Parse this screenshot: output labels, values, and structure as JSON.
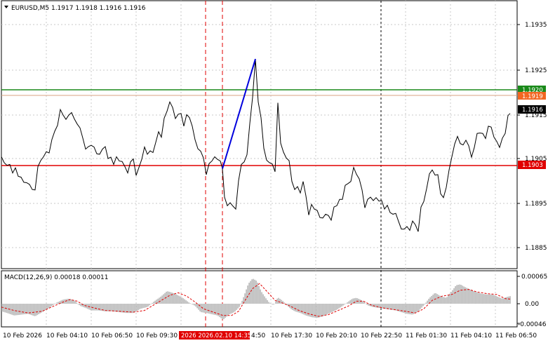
{
  "main_panel": {
    "symbol_header": "EURUSD,M5  1.1917 1.1918 1.1916 1.1916",
    "price_ticks": [
      "1.1935",
      "1.1925",
      "1.1915",
      "1.1905",
      "1.1895",
      "1.1885"
    ],
    "tags": {
      "green": {
        "text": "1.1920",
        "color": "#1a8a1a"
      },
      "orange": {
        "text": "1.1919",
        "color": "#f26722"
      },
      "current": {
        "text": "1.1916",
        "color": "#000000"
      },
      "red": {
        "text": "1.1903",
        "color": "#e00000"
      }
    }
  },
  "macd_panel": {
    "header": "MACD(12,26,9) 0.00018 0.00011",
    "ticks": [
      "0.00065",
      "0.00",
      "-0.00046"
    ],
    "histogram_color": "#c0c0c0",
    "signal_color": "#e00000"
  },
  "time_axis": {
    "labels": [
      "10 Feb 2026",
      "10 Feb 04:10",
      "10 Feb 06:50",
      "10 Feb 09:30",
      "4:50",
      "10 Feb 17:30",
      "10 Feb 20:10",
      "10 Feb 22:50",
      "11 Feb 01:30",
      "11 Feb 04:10",
      "11 Feb 06:50"
    ],
    "highlight_label": "2026 2026.02.10 14:35",
    "highlight_color": "#e00000"
  },
  "chart_data": {
    "type": "line",
    "title": "EURUSD,M5",
    "ylim": [
      1.18795,
      1.19425
    ],
    "levels": {
      "green": 1.192,
      "orange": 1.1919,
      "red": 1.1903
    },
    "trend_line": {
      "from": [
        317,
        1.1903
      ],
      "to": [
        364,
        1.19288
      ],
      "color": "#0000dd"
    },
    "price_series": [
      [
        2,
        1.19058
      ],
      [
        6,
        1.19044
      ],
      [
        10,
        1.19038
      ],
      [
        14,
        1.1904
      ],
      [
        18,
        1.1902
      ],
      [
        22,
        1.19032
      ],
      [
        26,
        1.19012
      ],
      [
        30,
        1.1901
      ],
      [
        34,
        1.18998
      ],
      [
        38,
        1.18997
      ],
      [
        42,
        1.18993
      ],
      [
        46,
        1.18981
      ],
      [
        50,
        1.1898
      ],
      [
        54,
        1.19035
      ],
      [
        58,
        1.19049
      ],
      [
        62,
        1.19058
      ],
      [
        66,
        1.1907
      ],
      [
        70,
        1.19067
      ],
      [
        74,
        1.19099
      ],
      [
        78,
        1.19118
      ],
      [
        82,
        1.19132
      ],
      [
        86,
        1.19169
      ],
      [
        90,
        1.19156
      ],
      [
        94,
        1.19146
      ],
      [
        98,
        1.19156
      ],
      [
        102,
        1.19162
      ],
      [
        106,
        1.19147
      ],
      [
        110,
        1.19135
      ],
      [
        114,
        1.19126
      ],
      [
        118,
        1.19102
      ],
      [
        122,
        1.19076
      ],
      [
        126,
        1.19082
      ],
      [
        130,
        1.19085
      ],
      [
        134,
        1.19081
      ],
      [
        138,
        1.19065
      ],
      [
        142,
        1.19064
      ],
      [
        146,
        1.19076
      ],
      [
        150,
        1.19082
      ],
      [
        154,
        1.19054
      ],
      [
        158,
        1.19057
      ],
      [
        162,
        1.1904
      ],
      [
        166,
        1.19058
      ],
      [
        170,
        1.19048
      ],
      [
        174,
        1.19047
      ],
      [
        178,
        1.19035
      ],
      [
        182,
        1.1902
      ],
      [
        186,
        1.19046
      ],
      [
        190,
        1.19053
      ],
      [
        194,
        1.19014
      ],
      [
        198,
        1.19033
      ],
      [
        202,
        1.19052
      ],
      [
        206,
        1.19081
      ],
      [
        210,
        1.19064
      ],
      [
        214,
        1.19072
      ],
      [
        218,
        1.19068
      ],
      [
        222,
        1.19092
      ],
      [
        226,
        1.19117
      ],
      [
        230,
        1.19104
      ],
      [
        234,
        1.19149
      ],
      [
        238,
        1.19165
      ],
      [
        242,
        1.19187
      ],
      [
        246,
        1.19174
      ],
      [
        250,
        1.19148
      ],
      [
        254,
        1.19158
      ],
      [
        258,
        1.1916
      ],
      [
        262,
        1.1913
      ],
      [
        266,
        1.19157
      ],
      [
        270,
        1.1915
      ],
      [
        274,
        1.1913
      ],
      [
        278,
        1.19098
      ],
      [
        282,
        1.19077
      ],
      [
        286,
        1.19071
      ],
      [
        290,
        1.19055
      ],
      [
        294,
        1.19016
      ],
      [
        298,
        1.19042
      ],
      [
        302,
        1.19048
      ],
      [
        306,
        1.19058
      ],
      [
        310,
        1.19052
      ],
      [
        314,
        1.19048
      ],
      [
        317,
        1.1903
      ],
      [
        320,
        1.18963
      ],
      [
        324,
        1.18943
      ],
      [
        328,
        1.1895
      ],
      [
        332,
        1.18942
      ],
      [
        336,
        1.18935
      ],
      [
        340,
        1.19002
      ],
      [
        344,
        1.1904
      ],
      [
        348,
        1.19046
      ],
      [
        352,
        1.19063
      ],
      [
        356,
        1.19136
      ],
      [
        360,
        1.19198
      ],
      [
        364,
        1.19288
      ],
      [
        368,
        1.19187
      ],
      [
        372,
        1.1915
      ],
      [
        376,
        1.19078
      ],
      [
        380,
        1.1905
      ],
      [
        384,
        1.19044
      ],
      [
        388,
        1.19041
      ],
      [
        392,
        1.19023
      ],
      [
        396,
        1.19185
      ],
      [
        400,
        1.1909
      ],
      [
        404,
        1.19069
      ],
      [
        408,
        1.19055
      ],
      [
        412,
        1.19049
      ],
      [
        416,
        1.19
      ],
      [
        420,
        1.18981
      ],
      [
        424,
        1.18988
      ],
      [
        428,
        1.18973
      ],
      [
        432,
        1.19
      ],
      [
        436,
        1.18966
      ],
      [
        440,
        1.18921
      ],
      [
        444,
        1.18946
      ],
      [
        448,
        1.18935
      ],
      [
        452,
        1.18932
      ],
      [
        456,
        1.18915
      ],
      [
        460,
        1.18914
      ],
      [
        464,
        1.18923
      ],
      [
        468,
        1.1892
      ],
      [
        472,
        1.18909
      ],
      [
        476,
        1.1894
      ],
      [
        480,
        1.18943
      ],
      [
        484,
        1.18958
      ],
      [
        488,
        1.18958
      ],
      [
        492,
        1.18991
      ],
      [
        496,
        1.18995
      ],
      [
        500,
        1.19
      ],
      [
        504,
        1.19033
      ],
      [
        508,
        1.19017
      ],
      [
        512,
        1.19006
      ],
      [
        516,
        1.1898
      ],
      [
        520,
        1.18938
      ],
      [
        524,
        1.18958
      ],
      [
        528,
        1.18963
      ],
      [
        532,
        1.18955
      ],
      [
        536,
        1.18962
      ],
      [
        540,
        1.18954
      ],
      [
        544,
        1.18955
      ],
      [
        548,
        1.18935
      ],
      [
        552,
        1.18944
      ],
      [
        556,
        1.18927
      ],
      [
        560,
        1.18923
      ],
      [
        564,
        1.18925
      ],
      [
        568,
        1.18906
      ],
      [
        572,
        1.18888
      ],
      [
        576,
        1.18888
      ],
      [
        580,
        1.18894
      ],
      [
        584,
        1.18885
      ],
      [
        588,
        1.18907
      ],
      [
        592,
        1.18898
      ],
      [
        596,
        1.18882
      ],
      [
        600,
        1.1894
      ],
      [
        604,
        1.18953
      ],
      [
        608,
        1.18983
      ],
      [
        612,
        1.19018
      ],
      [
        616,
        1.19027
      ],
      [
        620,
        1.19015
      ],
      [
        624,
        1.19016
      ],
      [
        628,
        1.18971
      ],
      [
        632,
        1.18962
      ],
      [
        636,
        1.18986
      ],
      [
        640,
        1.19027
      ],
      [
        644,
        1.19058
      ],
      [
        648,
        1.19088
      ],
      [
        652,
        1.19106
      ],
      [
        656,
        1.19089
      ],
      [
        660,
        1.19086
      ],
      [
        664,
        1.19097
      ],
      [
        668,
        1.19084
      ],
      [
        672,
        1.19057
      ],
      [
        676,
        1.1908
      ],
      [
        680,
        1.19113
      ],
      [
        684,
        1.19114
      ],
      [
        688,
        1.19113
      ],
      [
        692,
        1.19101
      ],
      [
        696,
        1.1913
      ],
      [
        700,
        1.19128
      ],
      [
        704,
        1.19104
      ],
      [
        708,
        1.19094
      ],
      [
        712,
        1.1908
      ],
      [
        716,
        1.19102
      ],
      [
        720,
        1.19113
      ],
      [
        724,
        1.19155
      ],
      [
        727,
        1.1916
      ]
    ],
    "macd_hist": [
      [
        2,
        -0.00018
      ],
      [
        10,
        -0.00022
      ],
      [
        20,
        -0.00028
      ],
      [
        30,
        -0.00026
      ],
      [
        40,
        -0.00024
      ],
      [
        50,
        -0.0003
      ],
      [
        60,
        -0.0002
      ],
      [
        70,
        -0.0001
      ],
      [
        80,
        2e-05
      ],
      [
        90,
        0.0001
      ],
      [
        98,
        0.00012
      ],
      [
        106,
        8e-05
      ],
      [
        114,
        -5e-05
      ],
      [
        122,
        -0.0001
      ],
      [
        130,
        -0.00016
      ],
      [
        140,
        -0.00016
      ],
      [
        150,
        -0.00018
      ],
      [
        160,
        -0.00018
      ],
      [
        170,
        -0.0002
      ],
      [
        180,
        -0.00022
      ],
      [
        190,
        -0.00022
      ],
      [
        200,
        -0.00012
      ],
      [
        210,
        -8e-05
      ],
      [
        220,
        6e-05
      ],
      [
        230,
        0.00018
      ],
      [
        238,
        0.0003
      ],
      [
        246,
        0.00026
      ],
      [
        254,
        0.0002
      ],
      [
        262,
        0.00012
      ],
      [
        270,
        2e-05
      ],
      [
        278,
        -5e-05
      ],
      [
        286,
        -0.0002
      ],
      [
        294,
        -0.00022
      ],
      [
        302,
        -0.00025
      ],
      [
        310,
        -0.00028
      ],
      [
        318,
        -0.00038
      ],
      [
        326,
        -0.00026
      ],
      [
        334,
        -0.0002
      ],
      [
        342,
        -6e-05
      ],
      [
        348,
        0.0002
      ],
      [
        354,
        0.00048
      ],
      [
        360,
        0.0006
      ],
      [
        366,
        0.00054
      ],
      [
        372,
        0.0003
      ],
      [
        378,
        0.00015
      ],
      [
        384,
        2e-05
      ],
      [
        390,
        -3e-05
      ],
      [
        396,
        0.00015
      ],
      [
        402,
        8e-05
      ],
      [
        408,
        -2e-05
      ],
      [
        414,
        -0.00012
      ],
      [
        420,
        -0.00018
      ],
      [
        428,
        -0.00022
      ],
      [
        436,
        -0.00028
      ],
      [
        444,
        -0.00032
      ],
      [
        452,
        -0.00034
      ],
      [
        460,
        -0.0003
      ],
      [
        470,
        -0.00022
      ],
      [
        478,
        -0.00016
      ],
      [
        486,
        -8e-05
      ],
      [
        494,
        2e-05
      ],
      [
        502,
        0.00012
      ],
      [
        508,
        0.00014
      ],
      [
        516,
        8e-05
      ],
      [
        524,
        -4e-05
      ],
      [
        532,
        -8e-05
      ],
      [
        540,
        -0.0001
      ],
      [
        548,
        -0.00012
      ],
      [
        556,
        -0.00014
      ],
      [
        564,
        -0.00016
      ],
      [
        572,
        -0.0002
      ],
      [
        580,
        -0.00024
      ],
      [
        588,
        -0.00026
      ],
      [
        596,
        -0.00018
      ],
      [
        604,
        -4e-05
      ],
      [
        612,
        0.00014
      ],
      [
        620,
        0.00026
      ],
      [
        628,
        0.00018
      ],
      [
        636,
        0.00014
      ],
      [
        644,
        0.0003
      ],
      [
        650,
        0.00044
      ],
      [
        656,
        0.00046
      ],
      [
        662,
        0.0004
      ],
      [
        670,
        0.00034
      ],
      [
        678,
        0.00028
      ],
      [
        686,
        0.00024
      ],
      [
        694,
        0.00022
      ],
      [
        702,
        0.00022
      ],
      [
        710,
        0.00016
      ],
      [
        716,
        0.00012
      ],
      [
        722,
        0.00016
      ],
      [
        727,
        0.00018
      ]
    ],
    "macd_signal": [
      [
        2,
        -8e-05
      ],
      [
        20,
        -0.00016
      ],
      [
        40,
        -0.00022
      ],
      [
        60,
        -0.00018
      ],
      [
        76,
        -6e-05
      ],
      [
        90,
        4e-05
      ],
      [
        100,
        0.0001
      ],
      [
        110,
        6e-05
      ],
      [
        120,
        -4e-05
      ],
      [
        134,
        -0.0001
      ],
      [
        150,
        -0.00016
      ],
      [
        170,
        -0.00018
      ],
      [
        190,
        -0.0002
      ],
      [
        206,
        -0.00016
      ],
      [
        218,
        -4e-05
      ],
      [
        230,
        8e-05
      ],
      [
        242,
        0.0002
      ],
      [
        254,
        0.00026
      ],
      [
        266,
        0.00018
      ],
      [
        278,
        4e-05
      ],
      [
        290,
        -0.00012
      ],
      [
        304,
        -0.0002
      ],
      [
        318,
        -0.00028
      ],
      [
        330,
        -0.00028
      ],
      [
        340,
        -0.00018
      ],
      [
        350,
        0.0001
      ],
      [
        360,
        0.00036
      ],
      [
        370,
        0.00048
      ],
      [
        380,
        0.0003
      ],
      [
        392,
        8e-05
      ],
      [
        402,
        2e-05
      ],
      [
        414,
        -6e-05
      ],
      [
        426,
        -0.00016
      ],
      [
        440,
        -0.00024
      ],
      [
        454,
        -0.0003
      ],
      [
        468,
        -0.00026
      ],
      [
        482,
        -0.00016
      ],
      [
        496,
        -6e-05
      ],
      [
        508,
        6e-05
      ],
      [
        518,
        6e-05
      ],
      [
        530,
        -4e-05
      ],
      [
        546,
        -0.0001
      ],
      [
        562,
        -0.00014
      ],
      [
        578,
        -0.00018
      ],
      [
        592,
        -0.00022
      ],
      [
        604,
        -0.00012
      ],
      [
        616,
        8e-05
      ],
      [
        630,
        0.00018
      ],
      [
        644,
        0.00022
      ],
      [
        656,
        0.00032
      ],
      [
        668,
        0.00034
      ],
      [
        680,
        0.00028
      ],
      [
        694,
        0.00024
      ],
      [
        708,
        0.00022
      ],
      [
        720,
        0.00012
      ],
      [
        727,
        0.00011
      ]
    ]
  }
}
